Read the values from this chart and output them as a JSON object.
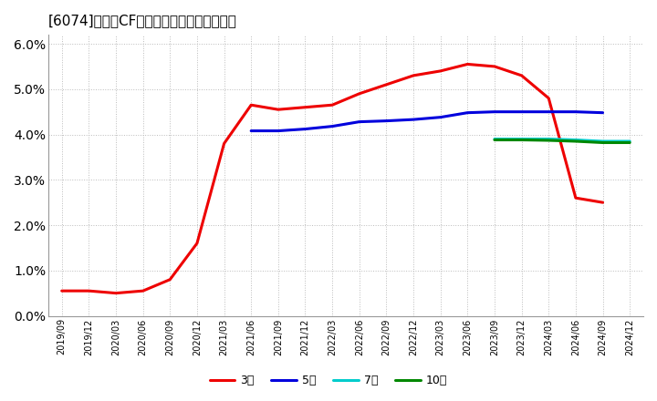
{
  "title": "[6074]　営業CFマージンの標準偏差の推移",
  "ylim": [
    0.0,
    0.062
  ],
  "yticks": [
    0.0,
    0.01,
    0.02,
    0.03,
    0.04,
    0.05,
    0.06
  ],
  "background_color": "#ffffff",
  "grid_color": "#bbbbbb",
  "series": {
    "3年": {
      "color": "#ee0000",
      "dates": [
        "2019/09",
        "2019/12",
        "2020/03",
        "2020/06",
        "2020/09",
        "2020/12",
        "2021/03",
        "2021/06",
        "2021/09",
        "2021/12",
        "2022/03",
        "2022/06",
        "2022/09",
        "2022/12",
        "2023/03",
        "2023/06",
        "2023/09",
        "2023/12",
        "2024/03",
        "2024/06",
        "2024/09"
      ],
      "values": [
        0.0055,
        0.0055,
        0.005,
        0.0055,
        0.008,
        0.016,
        0.038,
        0.0465,
        0.0455,
        0.046,
        0.0465,
        0.049,
        0.051,
        0.053,
        0.054,
        0.0555,
        0.055,
        0.053,
        0.048,
        0.026,
        0.025
      ]
    },
    "5年": {
      "color": "#0000dd",
      "dates": [
        "2021/06",
        "2021/09",
        "2021/12",
        "2022/03",
        "2022/06",
        "2022/09",
        "2022/12",
        "2023/03",
        "2023/06",
        "2023/09",
        "2023/12",
        "2024/03",
        "2024/06",
        "2024/09"
      ],
      "values": [
        0.0408,
        0.0408,
        0.0412,
        0.0418,
        0.0428,
        0.043,
        0.0433,
        0.0438,
        0.0448,
        0.045,
        0.045,
        0.045,
        0.045,
        0.0448
      ]
    },
    "7年": {
      "color": "#00cccc",
      "dates": [
        "2023/09",
        "2023/12",
        "2024/03",
        "2024/06",
        "2024/09",
        "2024/12"
      ],
      "values": [
        0.039,
        0.039,
        0.039,
        0.0388,
        0.0385,
        0.0385
      ]
    },
    "10年": {
      "color": "#008800",
      "dates": [
        "2023/09",
        "2023/12",
        "2024/03",
        "2024/06",
        "2024/09",
        "2024/12"
      ],
      "values": [
        0.0388,
        0.0388,
        0.0387,
        0.0385,
        0.0382,
        0.0382
      ]
    }
  },
  "xtick_labels": [
    "2019/09",
    "2019/12",
    "2020/03",
    "2020/06",
    "2020/09",
    "2020/12",
    "2021/03",
    "2021/06",
    "2021/09",
    "2021/12",
    "2022/03",
    "2022/06",
    "2022/09",
    "2022/12",
    "2023/03",
    "2023/06",
    "2023/09",
    "2023/12",
    "2024/03",
    "2024/06",
    "2024/09",
    "2024/12"
  ],
  "legend_labels": [
    "3年",
    "5年",
    "7年",
    "10年"
  ],
  "legend_colors": [
    "#ee0000",
    "#0000dd",
    "#00cccc",
    "#008800"
  ]
}
